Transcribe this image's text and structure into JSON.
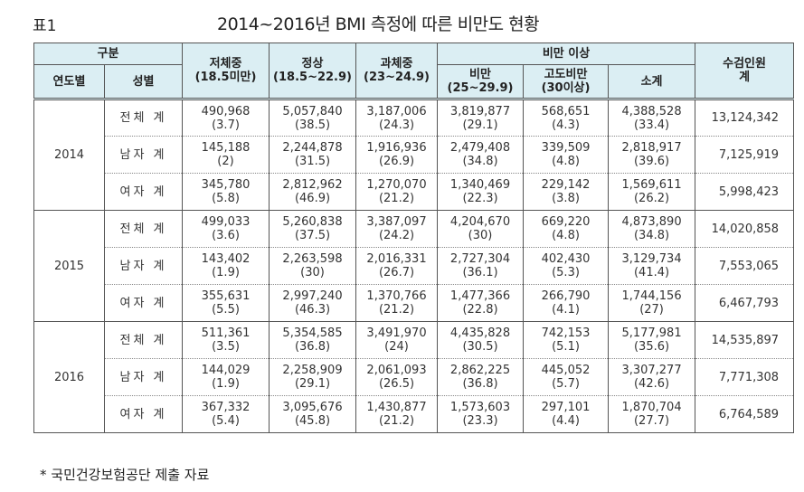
{
  "table_label": "표1",
  "title": "2014~2016년 BMI 측정에 따른 비만도 현황",
  "headers": {
    "gubun": "구분",
    "year": "연도별",
    "sex": "성별",
    "underweight": "저체중",
    "underweight_range": "(18.5미만)",
    "normal": "정상",
    "normal_range": "(18.5~22.9)",
    "overweight": "과체중",
    "overweight_range": "(23~24.9)",
    "obese_above": "비만 이상",
    "obese": "비만",
    "obese_range": "(25~29.9)",
    "severe": "고도비만",
    "severe_range": "(30이상)",
    "subtotal": "소계",
    "examinees": "수검인원",
    "examinees_total": "계"
  },
  "rows": [
    {
      "year": "2014",
      "sex": "전체 계",
      "c1": "490,968",
      "p1": "(3.7)",
      "c2": "5,057,840",
      "p2": "(38.5)",
      "c3": "3,187,006",
      "p3": "(24.3)",
      "c4": "3,819,877",
      "p4": "(29.1)",
      "c5": "568,651",
      "p5": "(4.3)",
      "c6": "4,388,528",
      "p6": "(33.4)",
      "total": "13,124,342"
    },
    {
      "sex": "남자 계",
      "c1": "145,188",
      "p1": "(2)",
      "c2": "2,244,878",
      "p2": "(31.5)",
      "c3": "1,916,936",
      "p3": "(26.9)",
      "c4": "2,479,408",
      "p4": "(34.8)",
      "c5": "339,509",
      "p5": "(4.8)",
      "c6": "2,818,917",
      "p6": "(39.6)",
      "total": "7,125,919"
    },
    {
      "sex": "여자 계",
      "c1": "345,780",
      "p1": "(5.8)",
      "c2": "2,812,962",
      "p2": "(46.9)",
      "c3": "1,270,070",
      "p3": "(21.2)",
      "c4": "1,340,469",
      "p4": "(22.3)",
      "c5": "229,142",
      "p5": "(3.8)",
      "c6": "1,569,611",
      "p6": "(26.2)",
      "total": "5,998,423"
    },
    {
      "year": "2015",
      "sex": "전체 계",
      "c1": "499,033",
      "p1": "(3.6)",
      "c2": "5,260,838",
      "p2": "(37.5)",
      "c3": "3,387,097",
      "p3": "(24.2)",
      "c4": "4,204,670",
      "p4": "(30)",
      "c5": "669,220",
      "p5": "(4.8)",
      "c6": "4,873,890",
      "p6": "(34.8)",
      "total": "14,020,858"
    },
    {
      "sex": "남자 계",
      "c1": "143,402",
      "p1": "(1.9)",
      "c2": "2,263,598",
      "p2": "(30)",
      "c3": "2,016,331",
      "p3": "(26.7)",
      "c4": "2,727,304",
      "p4": "(36.1)",
      "c5": "402,430",
      "p5": "(5.3)",
      "c6": "3,129,734",
      "p6": "(41.4)",
      "total": "7,553,065"
    },
    {
      "sex": "여자 계",
      "c1": "355,631",
      "p1": "(5.5)",
      "c2": "2,997,240",
      "p2": "(46.3)",
      "c3": "1,370,766",
      "p3": "(21.2)",
      "c4": "1,477,366",
      "p4": "(22.8)",
      "c5": "266,790",
      "p5": "(4.1)",
      "c6": "1,744,156",
      "p6": "(27)",
      "total": "6,467,793"
    },
    {
      "year": "2016",
      "sex": "전체 계",
      "c1": "511,361",
      "p1": "(3.5)",
      "c2": "5,354,585",
      "p2": "(36.8)",
      "c3": "3,491,970",
      "p3": "(24)",
      "c4": "4,435,828",
      "p4": "(30.5)",
      "c5": "742,153",
      "p5": "(5.1)",
      "c6": "5,177,981",
      "p6": "(35.6)",
      "total": "14,535,897"
    },
    {
      "sex": "남자 계",
      "c1": "144,029",
      "p1": "(1.9)",
      "c2": "2,258,909",
      "p2": "(29.1)",
      "c3": "2,061,093",
      "p3": "(26.5)",
      "c4": "2,862,225",
      "p4": "(36.8)",
      "c5": "445,052",
      "p5": "(5.7)",
      "c6": "3,307,277",
      "p6": "(42.6)",
      "total": "7,771,308"
    },
    {
      "sex": "여자 계",
      "c1": "367,332",
      "p1": "(5.4)",
      "c2": "3,095,676",
      "p2": "(45.8)",
      "c3": "1,430,877",
      "p3": "(21.2)",
      "c4": "1,573,603",
      "p4": "(23.3)",
      "c5": "297,101",
      "p5": "(4.4)",
      "c6": "1,870,704",
      "p6": "(27.7)",
      "total": "6,764,589"
    }
  ],
  "footnote": "* 국민건강보험공단 제출 자료"
}
